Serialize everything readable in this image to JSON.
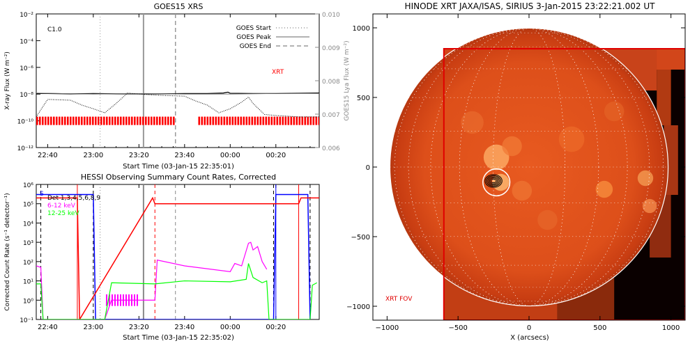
{
  "chart_data": [
    {
      "type": "line",
      "title": "GOES15 XRS",
      "xlabel": "Start Time (03-Jan-15 22:35:01)",
      "ylabel": "X-ray Flux (W m⁻²)",
      "y2label": "GOES15 Lya Flux (W m⁻²)",
      "x_tick_labels": [
        "22:40",
        "23:00",
        "23:20",
        "23:40",
        "00:00",
        "00:20"
      ],
      "y_tick_labels": [
        "10⁻¹²",
        "10⁻¹⁰",
        "10⁻⁸",
        "10⁻⁶",
        "10⁻⁴",
        "10⁻²"
      ],
      "y2_tick_labels": [
        "0.006",
        "0.007",
        "0.008",
        "0.009",
        "0.010"
      ],
      "y_scale": "log",
      "ylim": [
        1e-12,
        0.01
      ],
      "y2lim": [
        0.006,
        0.01
      ],
      "class_label": "C1.0",
      "legend": {
        "position": "top-right",
        "entries": [
          {
            "label": "GOES Start",
            "style": "dotted"
          },
          {
            "label": "GOES Peak",
            "style": "solid"
          },
          {
            "label": "GOES End",
            "style": "dashed"
          }
        ]
      },
      "event_times": {
        "start": "23:03",
        "peak": "23:22",
        "end": "23:36"
      },
      "series_label": "XRT",
      "series": [
        {
          "style": "solid",
          "x": [
            "22:35",
            "22:40",
            "22:50",
            "23:00",
            "23:10",
            "23:20",
            "23:30",
            "23:40",
            "23:50",
            "23:57",
            "23:59",
            "00:00",
            "00:10",
            "00:20",
            "00:30",
            "00:39"
          ],
          "y": [
            1.1e-08,
            1.1e-08,
            1.05e-08,
            1.1e-08,
            1.05e-08,
            1.05e-08,
            1.05e-08,
            1.1e-08,
            1.1e-08,
            1.2e-08,
            1.4e-08,
            1.15e-08,
            1.1e-08,
            1.1e-08,
            1.15e-08,
            1.2e-08
          ]
        },
        {
          "style": "thin-gray",
          "x": [
            "22:35",
            "23:00",
            "23:20",
            "23:40",
            "00:00",
            "00:20",
            "00:39"
          ],
          "y": [
            1.2e-08,
            1e-08,
            1.1e-08,
            1e-08,
            1e-08,
            1.1e-08,
            1.1e-08
          ]
        },
        {
          "style": "dotted",
          "x": [
            "22:35",
            "22:40",
            "22:50",
            "22:55",
            "23:00",
            "23:05",
            "23:10",
            "23:15",
            "23:20",
            "23:30",
            "23:40",
            "23:45",
            "23:50",
            "23:55",
            "00:00",
            "00:05",
            "00:08",
            "00:10",
            "00:15",
            "00:20",
            "00:30",
            "00:39"
          ],
          "y": [
            2e-10,
            4e-09,
            3.5e-09,
            1.5e-09,
            8e-10,
            4e-10,
            2e-09,
            1.2e-08,
            1e-08,
            8e-09,
            7e-09,
            3e-09,
            1.5e-09,
            4e-10,
            8e-10,
            2.5e-09,
            6e-09,
            2e-09,
            3e-10,
            2.5e-10,
            2e-10,
            2e-10
          ]
        }
      ],
      "coverage_bar": {
        "color": "#ff0000",
        "segments": [
          [
            "22:35",
            "23:35"
          ],
          [
            "23:46",
            "00:39"
          ]
        ]
      }
    },
    {
      "type": "line",
      "title": "HESSI Observing Summary Count Rates, Corrected",
      "xlabel": "Start Time (03-Jan-15 22:35:02)",
      "ylabel": "Corrected Count Rate (s⁻¹ detector⁻¹)",
      "x_tick_labels": [
        "22:40",
        "23:00",
        "23:20",
        "23:40",
        "00:00",
        "00:20"
      ],
      "y_tick_labels": [
        "10⁻¹",
        "10⁰",
        "10¹",
        "10²",
        "10³",
        "10⁴",
        "10⁵",
        "10⁶"
      ],
      "y_scale": "log",
      "ylim": [
        0.1,
        1000000.0
      ],
      "legend": {
        "position": "top-left",
        "entries": [
          {
            "label": "Det 1,3,4,5,6,8,9",
            "color": "#000000"
          },
          {
            "label": "6-12 keV",
            "color": "#ff00ff"
          },
          {
            "label": "12-25 keV",
            "color": "#00ff00"
          }
        ],
        "corner_label": "S"
      },
      "series": [
        {
          "name": "6-12 keV",
          "color": "#ff00ff",
          "x": [
            "22:35",
            "22:37",
            "22:38",
            "23:05",
            "23:08",
            "23:27",
            "23:28",
            "23:40",
            "00:00",
            "00:02",
            "00:05",
            "00:08",
            "00:09",
            "00:10",
            "00:12",
            "00:14",
            "00:16"
          ],
          "y": [
            60,
            50,
            0.1,
            0.1,
            1,
            1,
            120,
            60,
            30,
            80,
            60,
            900,
            1000,
            400,
            600,
            100,
            40
          ]
        },
        {
          "name": "12-25 keV",
          "color": "#00ff00",
          "x": [
            "22:35",
            "22:37",
            "22:38",
            "23:05",
            "23:08",
            "23:27",
            "23:40",
            "00:00",
            "00:07",
            "00:08",
            "00:10",
            "00:14",
            "00:16",
            "00:17",
            "00:35",
            "00:36",
            "00:38"
          ],
          "y": [
            7,
            7,
            0.1,
            0.1,
            8,
            7,
            10,
            9,
            12,
            80,
            15,
            8,
            10,
            0.1,
            0.1,
            6,
            8
          ]
        }
      ],
      "state_lines": [
        {
          "color": "#0000ff",
          "x": [
            "22:35",
            "22:37",
            "23:00",
            "23:01",
            "00:19",
            "00:20",
            "00:34",
            "00:35"
          ],
          "y": [
            300000.0,
            300000.0,
            300000.0,
            0.1,
            0.1,
            300000.0,
            300000.0,
            0.1
          ]
        },
        {
          "color": "#ff0000",
          "x": [
            "22:35",
            "22:53",
            "22:54",
            "23:26",
            "23:27",
            "00:30",
            "00:31",
            "00:39"
          ],
          "y": [
            200000.0,
            200000.0,
            0.1,
            200000.0,
            100000.0,
            100000.0,
            200000.0,
            200000.0
          ]
        }
      ],
      "vertical_markers": [
        {
          "time": "22:37",
          "color": "#000000",
          "style": "dashed"
        },
        {
          "time": "22:53",
          "color": "#ff0000",
          "style": "solid"
        },
        {
          "time": "23:00",
          "color": "#000000",
          "style": "dashed"
        },
        {
          "time": "23:03",
          "color": "#888888",
          "style": "dotted"
        },
        {
          "time": "23:22",
          "color": "#888888",
          "style": "solid"
        },
        {
          "time": "23:27",
          "color": "#ff0000",
          "style": "dashed"
        },
        {
          "time": "23:36",
          "color": "#888888",
          "style": "dashed"
        },
        {
          "time": "00:19",
          "color": "#000000",
          "style": "dashed"
        },
        {
          "time": "00:20",
          "color": "#0000ff",
          "style": "solid"
        },
        {
          "time": "00:30",
          "color": "#ff0000",
          "style": "solid"
        },
        {
          "time": "00:35",
          "color": "#000000",
          "style": "dashed"
        }
      ],
      "hatched_band": {
        "color": "#ff00ff",
        "range": [
          "23:05",
          "23:20"
        ],
        "value": 1
      }
    },
    {
      "type": "heatmap",
      "title": "HINODE XRT JAXA/ISAS, SIRIUS   3-Jan-2015 23:22:21.002 UT",
      "xlabel": "X (arcsecs)",
      "ylabel": "",
      "x_tick_labels": [
        "−1000",
        "−500",
        "0",
        "500",
        "1000"
      ],
      "y_tick_labels": [
        "−1000",
        "−500",
        "0",
        "500",
        "1000"
      ],
      "xlim": [
        -1100,
        1100
      ],
      "ylim": [
        -1100,
        1100
      ],
      "fov_label": "XRT FOV",
      "fov_box": {
        "x": [
          -600,
          1100
        ],
        "y": [
          -1100,
          850
        ]
      },
      "solar_radius": 980,
      "flare_position": [
        -230,
        -110
      ],
      "contour_levels": 5,
      "colors": {
        "disk": "#e34a1c",
        "bright": "#ffb36b",
        "fov": "#e00000",
        "grid": "#ffffff"
      }
    }
  ]
}
